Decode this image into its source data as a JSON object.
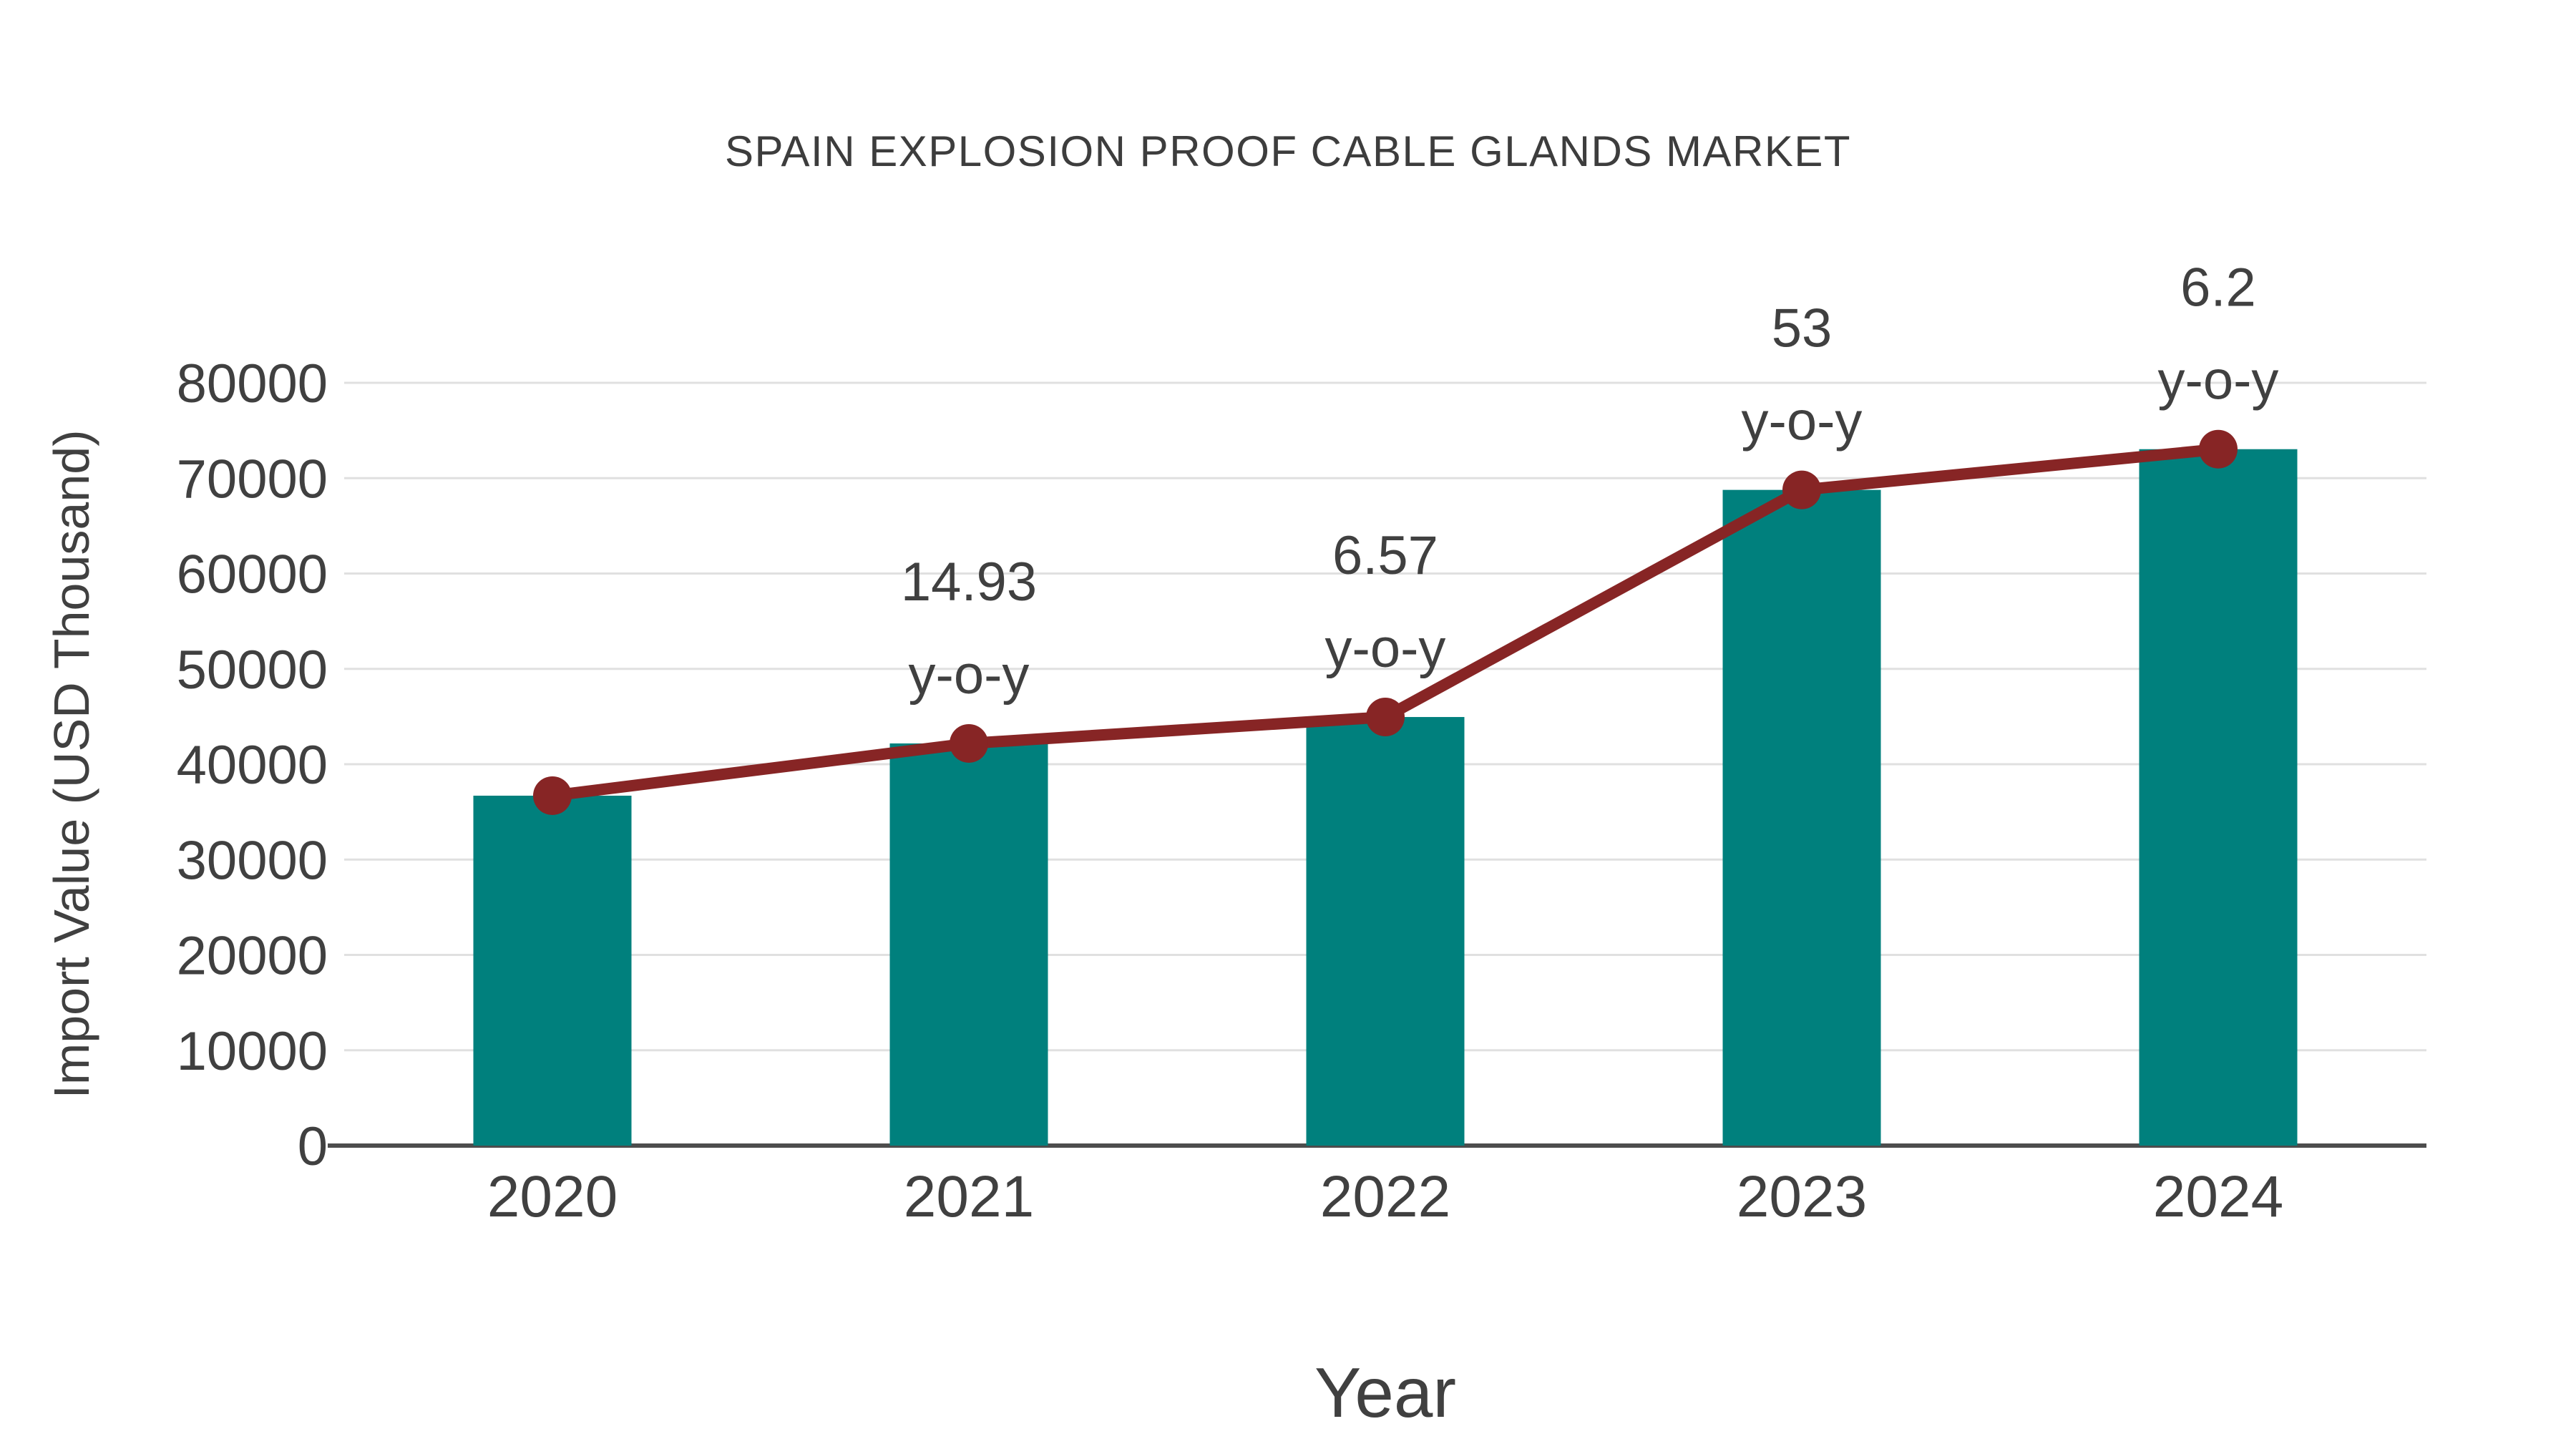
{
  "chart_data": {
    "type": "bar",
    "title": "SPAIN EXPLOSION PROOF CABLE GLANDS MARKET",
    "xlabel": "Year",
    "ylabel": "Import Value (USD Thousand)",
    "categories": [
      "2020",
      "2021",
      "2022",
      "2023",
      "2024"
    ],
    "series": [
      {
        "name": "Import Value (USD Thousand)",
        "type": "bar",
        "color": "#00807D",
        "values": [
          36700,
          42180,
          44950,
          68770,
          73040
        ]
      },
      {
        "name": "Import Value trend line",
        "type": "line",
        "color": "#872525",
        "values": [
          36700,
          42180,
          44950,
          68770,
          73040
        ]
      }
    ],
    "annotations": [
      {
        "category": "2021",
        "line1": "14.93",
        "line2": "y-o-y"
      },
      {
        "category": "2022",
        "line1": "6.57",
        "line2": "y-o-y"
      },
      {
        "category": "2023",
        "line1": "53",
        "line2": "y-o-y"
      },
      {
        "category": "2024",
        "line1": "6.2",
        "line2": "y-o-y"
      }
    ],
    "ylim": [
      0,
      80000
    ],
    "yticks": [
      0,
      10000,
      20000,
      30000,
      40000,
      50000,
      60000,
      70000,
      80000
    ],
    "grid": "horizontal-light",
    "legend": "none",
    "colors": {
      "bar": "#00807D",
      "line": "#872525",
      "text": "#404040",
      "title": "#3D3D3D",
      "grid": "#E0E0E0",
      "axis": "#4D4D4D",
      "background": "#FFFFFF"
    }
  }
}
